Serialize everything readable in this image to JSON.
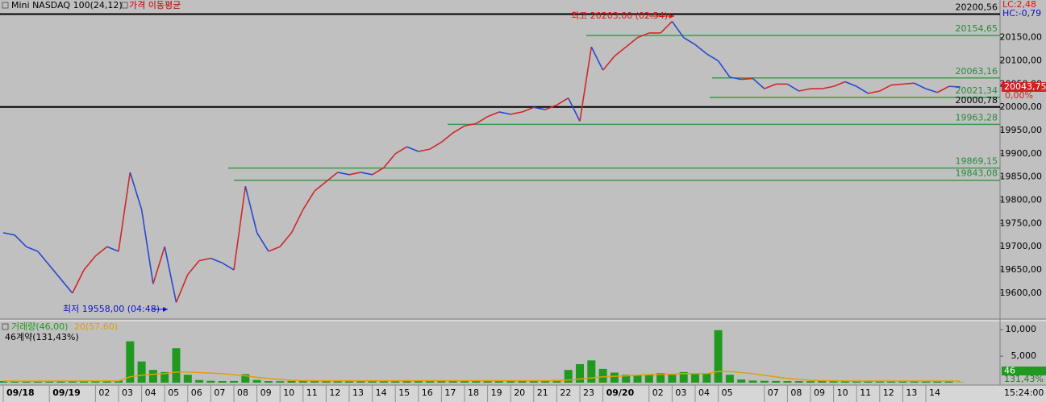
{
  "chart_data": {
    "type": "line",
    "title": "Mini NASDAQ 100(24,12)",
    "subtitle": "가격 이동평균",
    "color": "#d02828",
    "down_color": "#2848d0",
    "categories": [
      "09/18",
      null,
      null,
      null,
      "09/19",
      null,
      null,
      null,
      "02",
      null,
      "03",
      null,
      "04",
      null,
      "05",
      null,
      "06",
      null,
      "07",
      null,
      "08",
      null,
      "09",
      null,
      "10",
      null,
      "11",
      null,
      "12",
      null,
      "13",
      null,
      "14",
      null,
      "15",
      null,
      "16",
      null,
      "17",
      null,
      "18",
      null,
      "19",
      null,
      "20",
      null,
      "21",
      null,
      "22",
      null,
      "23",
      null,
      "09/20",
      null,
      null,
      null,
      "02",
      null,
      "03",
      null,
      "04",
      null,
      "05",
      null,
      null,
      null,
      "07",
      null,
      "08",
      null,
      "09",
      null,
      "10",
      null,
      "11",
      null,
      "12",
      null,
      "13",
      null,
      "14",
      null,
      null,
      null
    ],
    "values": [
      19730,
      19725,
      19700,
      19690,
      19660,
      19630,
      19600,
      19650,
      19680,
      19700,
      19690,
      19860,
      19780,
      19620,
      19700,
      19580,
      19640,
      19670,
      19675,
      19665,
      19650,
      19830,
      19730,
      19690,
      19700,
      19730,
      19780,
      19820,
      19840,
      19860,
      19855,
      19860,
      19855,
      19870,
      19900,
      19915,
      19905,
      19910,
      19925,
      19945,
      19960,
      19965,
      19980,
      19990,
      19985,
      19990,
      20000,
      19995,
      20005,
      20020,
      19970,
      20130,
      20080,
      20110,
      20130,
      20150,
      20160,
      20160,
      20185,
      20150,
      20135,
      20115,
      20100,
      20065,
      20060,
      20062,
      20040,
      20050,
      20050,
      20035,
      20040,
      20040,
      20045,
      20055,
      20045,
      20030,
      20035,
      20048,
      20050,
      20052,
      20040,
      20032,
      20045,
      20043.75
    ],
    "ylim": [
      19546,
      20231
    ],
    "yticks": [
      {
        "value": 20150,
        "label": "20150,00"
      },
      {
        "value": 20100,
        "label": "20100,00"
      },
      {
        "value": 20050,
        "label": "20050,00"
      },
      {
        "value": 20000,
        "label": "20000,00"
      },
      {
        "value": 19950,
        "label": "19950,00"
      },
      {
        "value": 19900,
        "label": "19900,00"
      },
      {
        "value": 19850,
        "label": "19850,00"
      },
      {
        "value": 19800,
        "label": "19800,00"
      },
      {
        "value": 19750,
        "label": "19750,00"
      },
      {
        "value": 19700,
        "label": "19700,00"
      },
      {
        "value": 19650,
        "label": "19650,00"
      },
      {
        "value": 19600,
        "label": "19600,00"
      }
    ],
    "levels": [
      {
        "value": 20200.56,
        "label": "20200,56",
        "color": "#000000"
      },
      {
        "value": 20154.65,
        "label": "20154,65",
        "color": "#3a9a4a"
      },
      {
        "value": 20063.16,
        "label": "20063,16",
        "color": "#3a9a4a"
      },
      {
        "value": 20021.34,
        "label": "20021,34",
        "color": "#3a9a4a"
      },
      {
        "value": 20000.78,
        "label": "20000,78",
        "color": "#000000"
      },
      {
        "value": 19963.28,
        "label": "19963,28",
        "color": "#3a9a4a"
      },
      {
        "value": 19869.15,
        "label": "19869,15",
        "color": "#3a9a4a"
      },
      {
        "value": 19843.08,
        "label": "19843,08",
        "color": "#3a9a4a"
      }
    ],
    "annotations": [
      {
        "text": "최고 20203,00 (02:54)",
        "color": "#e01010"
      },
      {
        "text": "최저 19558,00 (04:48)",
        "color": "#1010d0"
      }
    ],
    "lc": "LC:2,48",
    "hc": "HC:-0,79",
    "last_price": {
      "value": 20043.75,
      "label": "20043,75"
    },
    "change": "0,00%",
    "volume": {
      "type": "bar",
      "subtitle": "46계약(131,43%)",
      "ylim": [
        0,
        11700
      ],
      "yticks": [
        {
          "value": 10000,
          "label": "10,000"
        },
        {
          "value": 5000,
          "label": "5,000"
        }
      ],
      "series": [
        {
          "name": "거래량(46,00)",
          "color": "#1f9a1f",
          "values": [
            300,
            250,
            280,
            260,
            300,
            320,
            350,
            330,
            300,
            320,
            400,
            7800,
            4000,
            2400,
            2000,
            6500,
            1500,
            500,
            350,
            300,
            320,
            1600,
            500,
            300,
            280,
            320,
            350,
            400,
            380,
            350,
            330,
            300,
            320,
            350,
            380,
            400,
            420,
            380,
            350,
            330,
            360,
            380,
            400,
            420,
            380,
            360,
            340,
            380,
            500,
            2400,
            3500,
            4200,
            2600,
            1900,
            1500,
            1400,
            1600,
            1800,
            1500,
            2000,
            1600,
            1800,
            9900,
            1500,
            600,
            400,
            350,
            320,
            300,
            300,
            280,
            300,
            320,
            300,
            280,
            300,
            320,
            300,
            280,
            300,
            320,
            300,
            280,
            46
          ]
        },
        {
          "name": "20(57,60)",
          "type": "line",
          "color": "#e0a000",
          "values": [
            300,
            290,
            290,
            280,
            290,
            300,
            310,
            320,
            320,
            320,
            330,
            1100,
            1400,
            1600,
            1700,
            2000,
            2000,
            1900,
            1800,
            1700,
            1500,
            1300,
            1000,
            800,
            600,
            450,
            380,
            360,
            350,
            350,
            340,
            340,
            340,
            340,
            350,
            360,
            370,
            370,
            370,
            360,
            360,
            360,
            370,
            370,
            370,
            370,
            370,
            370,
            380,
            500,
            700,
            900,
            1100,
            1200,
            1300,
            1400,
            1500,
            1600,
            1600,
            1700,
            1700,
            1700,
            2100,
            2100,
            1900,
            1700,
            1400,
            1100,
            800,
            600,
            450,
            380,
            340,
            320,
            310,
            300,
            300,
            300,
            300,
            300,
            300,
            300,
            300,
            290
          ]
        }
      ],
      "last_value": 46,
      "last_ratio": "131,43%"
    },
    "clock": "15:24:00"
  }
}
